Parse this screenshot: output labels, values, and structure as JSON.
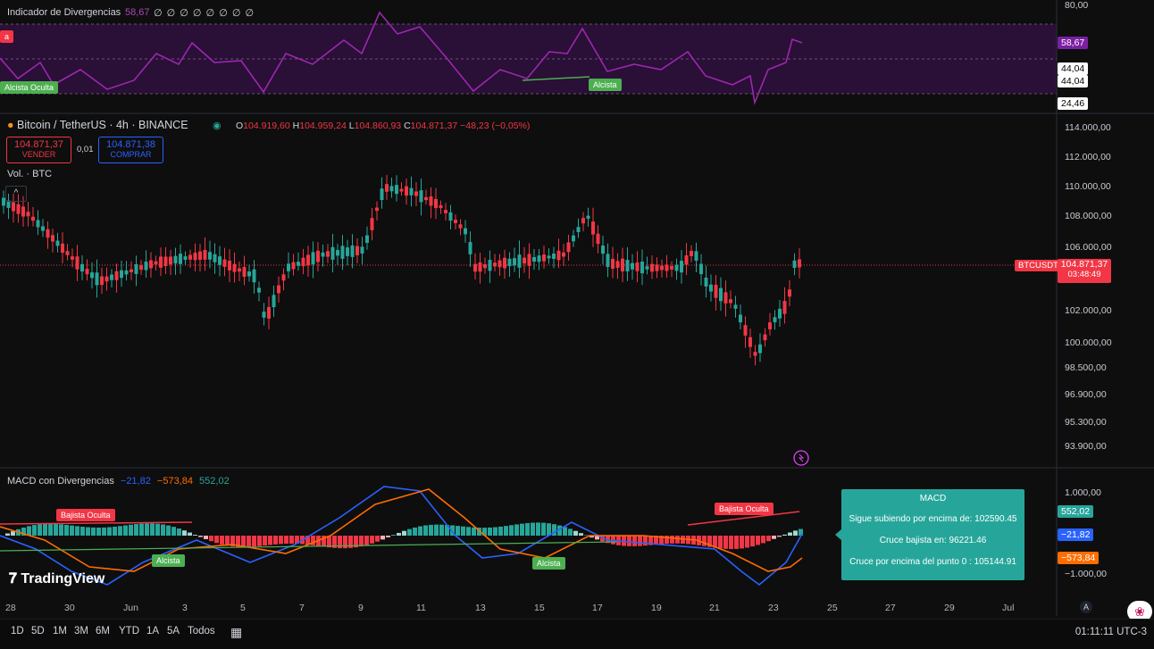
{
  "rsi_panel": {
    "title": "Indicador de Divergencias",
    "value": "58,67",
    "zeros": "∅ ∅ ∅ ∅ ∅ ∅ ∅ ∅",
    "axis": [
      "80,00",
      "24,46"
    ],
    "levels": [
      "44,04",
      "44,04"
    ],
    "current_tag": "58,67",
    "badge_left_bear": "a",
    "badge_left_bull": "Alcista Oculta",
    "badge_bull": "Alcista"
  },
  "main_panel": {
    "symbol": "Bitcoin / TetherUS · 4h · BINANCE",
    "ohlc": {
      "o_label": "O",
      "o": "104.919,60",
      "h_label": "H",
      "h": "104.959,24",
      "l_label": "L",
      "l": "104.860,93",
      "c_label": "C",
      "c": "104.871,37",
      "change": "−48,23 (−0,05%)"
    },
    "sell": {
      "price": "104.871,37",
      "label": "VENDER"
    },
    "spread": "0,01",
    "buy": {
      "price": "104.871,38",
      "label": "COMPRAR"
    },
    "volume_label": "Vol. · BTC",
    "price_axis": [
      "114.000,00",
      "112.000,00",
      "110.000,00",
      "108.000,00",
      "106.000,00",
      "102.000,00",
      "100.000,00",
      "98.500,00",
      "96.900,00",
      "95.300,00",
      "93.900,00"
    ],
    "symbol_tag": "BTCUSDT",
    "current_price": "104.871,37",
    "countdown": "03:48:49"
  },
  "macd_panel": {
    "title": "MACD con Divergencias",
    "v1": "−21,82",
    "v2": "−573,84",
    "v3": "552,02",
    "axis": [
      "1.000,00",
      "−1.000,00"
    ],
    "tags": [
      "552,02",
      "−21,82",
      "−573,84"
    ],
    "badge_bear_left": "Bajista Oculta",
    "badge_bull_left": "Alcista",
    "badge_bull_mid": "Alcista",
    "badge_bear_right": "Bajista Oculta",
    "tooltip": {
      "title": "MACD",
      "line1": "Sigue subiendo por encima de: 102590.45",
      "line2": "Cruce bajista en: 96221.46",
      "line3": "Cruce por encima del punto 0 : 105144.91"
    }
  },
  "time_axis": [
    "28",
    "30",
    "Jun",
    "3",
    "5",
    "7",
    "9",
    "11",
    "13",
    "15",
    "17",
    "19",
    "21",
    "23",
    "25",
    "27",
    "29",
    "Jul"
  ],
  "logo": "TradingView",
  "bottom_bar": {
    "ranges": [
      "1D",
      "5D",
      "1M",
      "3M",
      "6M",
      "YTD",
      "1A",
      "5A",
      "Todos"
    ],
    "clock": "01:11:11 UTC-3"
  },
  "colors": {
    "up": "#26a69a",
    "down": "#f23645",
    "rsi": "#9c27b0",
    "macd": "#2962ff",
    "signal": "#ff6d00",
    "bg": "#0e0e0e"
  }
}
